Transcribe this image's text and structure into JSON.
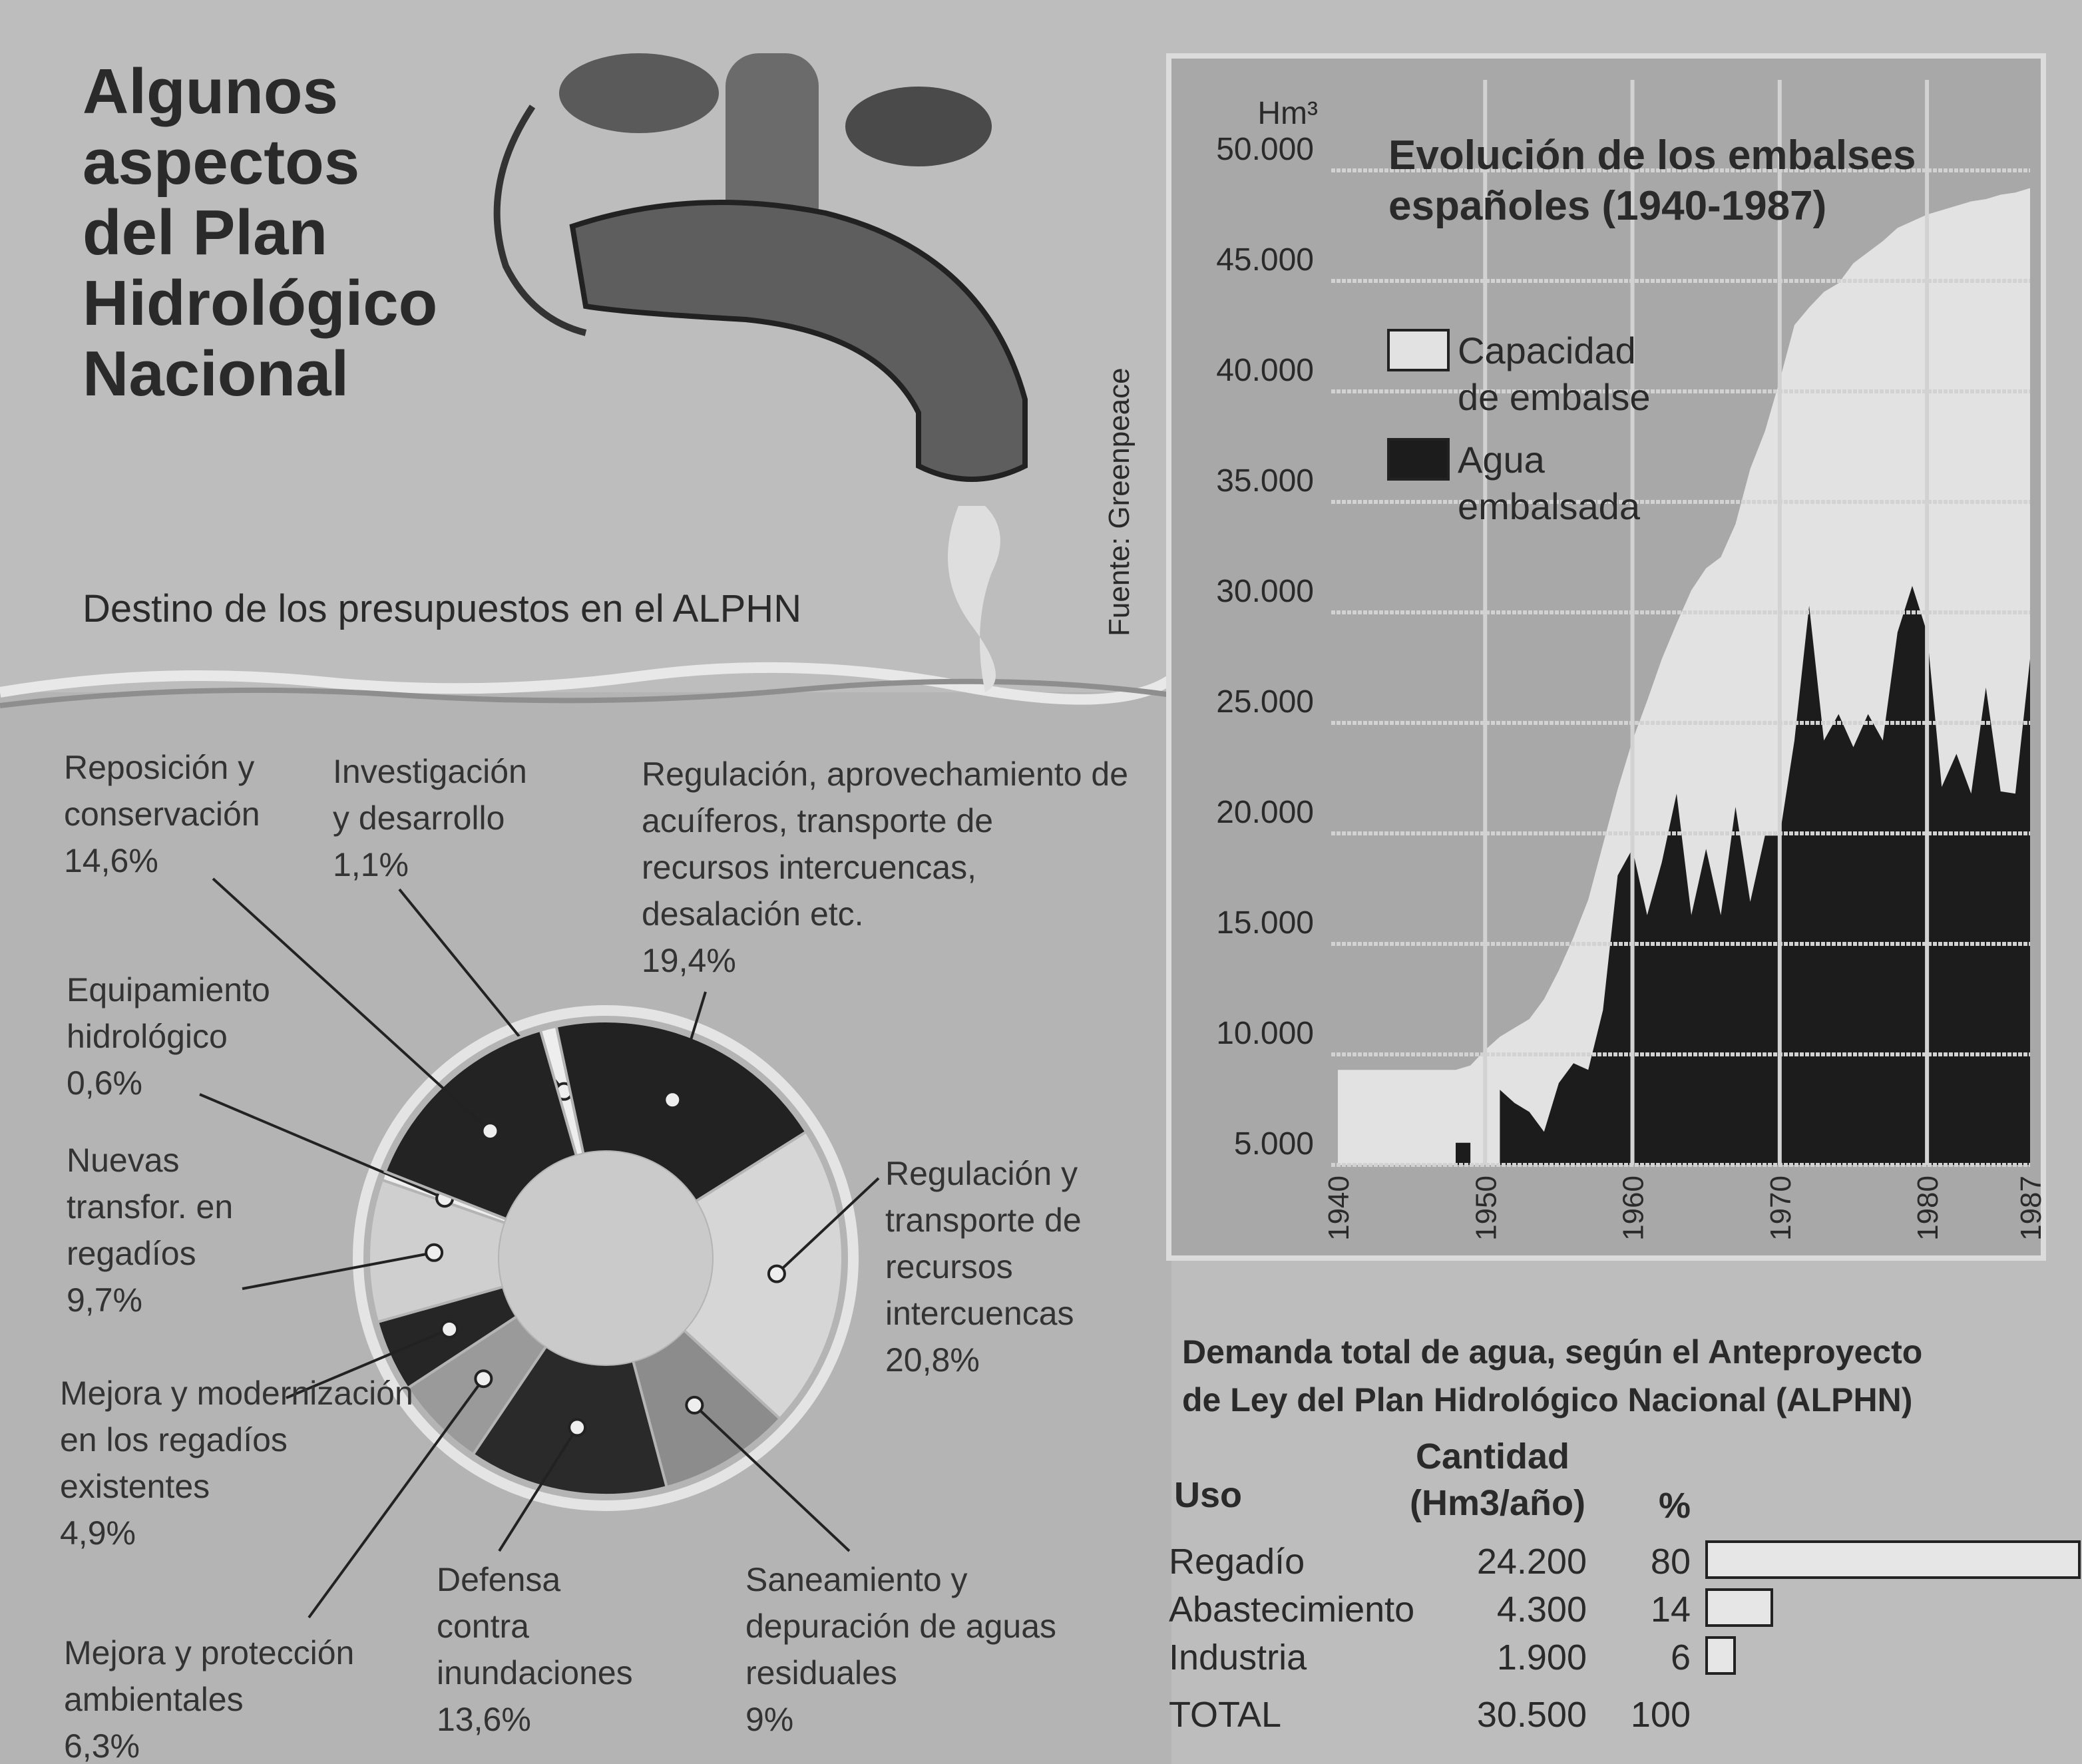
{
  "header": {
    "title": "Algunos aspectos del Plan Hidrológico Nacional",
    "subtitle": "Destino de los presupuestos en el ALPHN",
    "source": "Fuente: Greenpeace"
  },
  "chart_data": [
    {
      "type": "pie",
      "donut": true,
      "categories": [
        "Investigación y desarrollo",
        "Regulación, aprovechamiento de acuíferos, transporte de recursos intercuencas, desalación etc.",
        "Regulación y transporte de recursos intercuencas",
        "Saneamiento y depuración de aguas residuales",
        "Defensa contra inundaciones",
        "Mejora y protección ambientales",
        "Mejora y modernización en los regadíos existentes",
        "Nuevas transfor. en regadíos",
        "Equipamiento hidrológico",
        "Reposición y conservación"
      ],
      "values": [
        1.1,
        19.4,
        20.8,
        9,
        13.6,
        6.3,
        4.9,
        9.7,
        0.6,
        14.6
      ],
      "value_labels": [
        "1,1%",
        "19,4%",
        "20,8%",
        "9%",
        "13,6%",
        "6,3%",
        "4,9%",
        "9,7%",
        "0,6%",
        "14,6%"
      ],
      "colors": [
        "#eeeeee",
        "#222222",
        "#d6d6d6",
        "#8c8c8c",
        "#2a2a2a",
        "#9a9a9a",
        "#262626",
        "#cfcfcf",
        "#eeeeee",
        "#232323"
      ]
    },
    {
      "type": "area",
      "title": "Evolución de los embalses españoles (1940-1987)",
      "y_label": "Hm³",
      "x": [
        1940,
        1941,
        1942,
        1943,
        1944,
        1945,
        1946,
        1947,
        1948,
        1949,
        1950,
        1951,
        1952,
        1953,
        1954,
        1955,
        1956,
        1957,
        1958,
        1959,
        1960,
        1961,
        1962,
        1963,
        1964,
        1965,
        1966,
        1967,
        1968,
        1969,
        1970,
        1971,
        1972,
        1973,
        1974,
        1975,
        1976,
        1977,
        1978,
        1979,
        1980,
        1981,
        1982,
        1983,
        1984,
        1985,
        1986,
        1987
      ],
      "series": [
        {
          "name": "Capacidad de embalse",
          "color": "#e2e2e2",
          "values": [
            9300,
            9300,
            9300,
            9300,
            9300,
            9300,
            9300,
            9300,
            9300,
            9500,
            10200,
            10800,
            11200,
            11600,
            12500,
            13800,
            15300,
            17000,
            19500,
            22000,
            24200,
            26000,
            27900,
            29500,
            31000,
            32000,
            32500,
            34000,
            36500,
            38200,
            40500,
            43000,
            43800,
            44500,
            44900,
            45800,
            46300,
            46800,
            47400,
            47700,
            48000,
            48200,
            48400,
            48600,
            48700,
            48900,
            49000,
            49200
          ]
        },
        {
          "name": "Agua embalsada",
          "color": "#1c1c1c",
          "values": [
            null,
            null,
            null,
            null,
            null,
            null,
            null,
            null,
            6000,
            6000,
            null,
            8400,
            7800,
            7400,
            6500,
            8700,
            9600,
            9300,
            12000,
            18100,
            19300,
            16300,
            18700,
            21800,
            16300,
            19300,
            16300,
            21200,
            16900,
            19900,
            19900,
            24200,
            30300,
            24200,
            25400,
            23900,
            25400,
            24200,
            29100,
            31200,
            29100,
            22100,
            23600,
            21800,
            26600,
            21900,
            21800,
            27900
          ]
        }
      ],
      "xlim": [
        1940,
        1987
      ],
      "ylim": [
        5000,
        55000
      ],
      "xticks": [
        1940,
        1950,
        1960,
        1970,
        1980,
        1987
      ],
      "yticks": [
        {
          "value": 5000,
          "label": "5.000"
        },
        {
          "value": 10000,
          "label": "10.000"
        },
        {
          "value": 15000,
          "label": "15.000"
        },
        {
          "value": 20000,
          "label": "20.000"
        },
        {
          "value": 25000,
          "label": "25.000"
        },
        {
          "value": 30000,
          "label": "30.000"
        },
        {
          "value": 35000,
          "label": "35.000"
        },
        {
          "value": 40000,
          "label": "40.000"
        },
        {
          "value": 45000,
          "label": "45.000"
        },
        {
          "value": 50000,
          "label": "50.000"
        }
      ],
      "grid": true
    }
  ],
  "table": {
    "title": "Demanda total de agua, según el Anteproyecto de Ley del Plan Hidrológico Nacional (ALPHN)",
    "columns": [
      "Uso",
      "Cantidad (Hm3/año)",
      "%"
    ],
    "rows": [
      [
        "Regadío",
        "24.200",
        80
      ],
      [
        "Abastecimiento",
        "4.300",
        14
      ],
      [
        "Industria",
        "1.900",
        6
      ],
      [
        "TOTAL",
        "30.500",
        100
      ]
    ]
  }
}
